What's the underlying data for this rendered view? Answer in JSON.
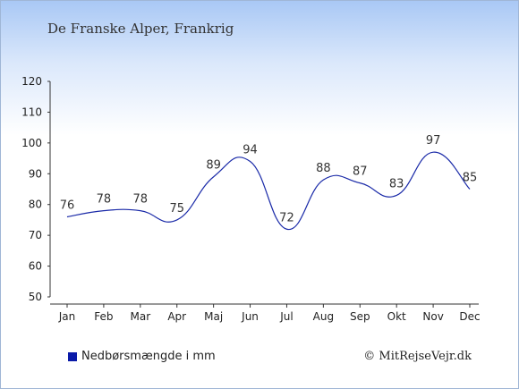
{
  "title": "De Franske Alper, Frankrig",
  "legend": {
    "label": "Nedbørsmængde i mm"
  },
  "credit": "© MitRejseVejr.dk",
  "colors": {
    "line": "#1a2aa8",
    "legend_swatch": "#0a1aa8",
    "axis": "#333333"
  },
  "chart_data": {
    "type": "line",
    "categories": [
      "Jan",
      "Feb",
      "Mar",
      "Apr",
      "Maj",
      "Jun",
      "Jul",
      "Aug",
      "Sep",
      "Okt",
      "Nov",
      "Dec"
    ],
    "series": [
      {
        "name": "Nedbørsmængde i mm",
        "values": [
          76,
          78,
          78,
          75,
          89,
          94,
          72,
          88,
          87,
          83,
          97,
          85
        ]
      }
    ],
    "ylim": [
      50,
      120
    ],
    "yticks": [
      50,
      60,
      70,
      80,
      90,
      100,
      110,
      120
    ],
    "grid": false,
    "legend_position": "bottom-left"
  }
}
